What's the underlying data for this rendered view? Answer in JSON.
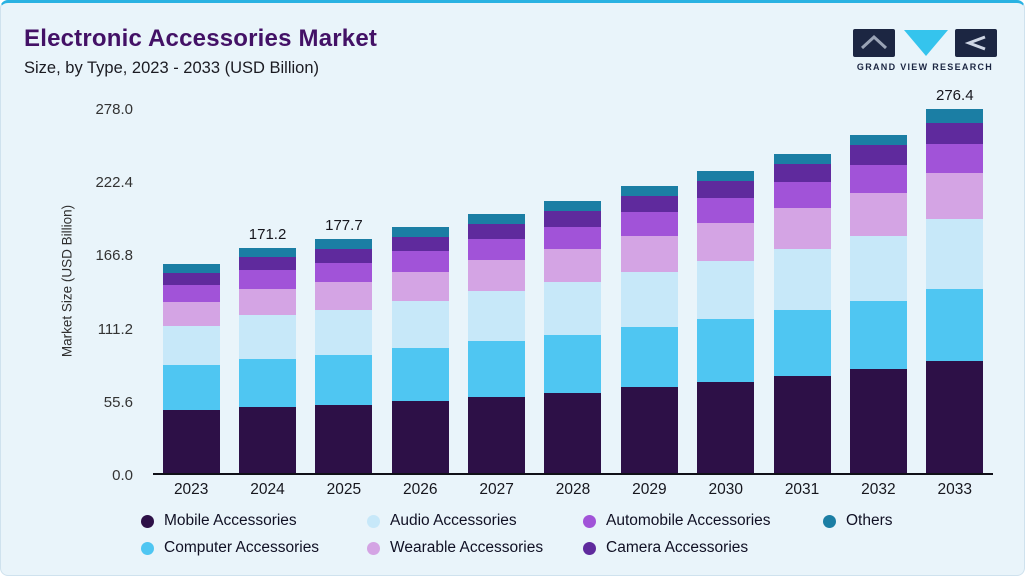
{
  "colors": {
    "accent": "#29b2e2",
    "title": "#431166",
    "logo_navy": "#1c2642",
    "logo_cyan": "#35c4ed"
  },
  "header": {
    "title": "Electronic Accessories Market",
    "subtitle": "Size, by Type, 2023 - 2033 (USD Billion)",
    "logo_text": "GRAND VIEW RESEARCH"
  },
  "chart_data": {
    "type": "bar",
    "stacked": true,
    "title": "Electronic Accessories Market Size, by Type, 2023 - 2033 (USD Billion)",
    "xlabel": "",
    "ylabel": "Market Size (USD Billion)",
    "ylim": [
      0,
      278.0
    ],
    "ytick_labels": [
      "0.0",
      "55.6",
      "111.2",
      "166.8",
      "222.4",
      "278.0"
    ],
    "grid": false,
    "legend_position": "bottom",
    "categories": [
      "2023",
      "2024",
      "2025",
      "2026",
      "2027",
      "2028",
      "2029",
      "2030",
      "2031",
      "2032",
      "2033"
    ],
    "series": [
      {
        "name": "Mobile Accessories",
        "color": "#2d1047",
        "values": [
          48,
          50,
          52,
          55,
          58,
          61,
          65,
          69,
          74,
          79,
          85
        ]
      },
      {
        "name": "Computer Accessories",
        "color": "#4fc6f2",
        "values": [
          34,
          37,
          38,
          40,
          42,
          44,
          46,
          48,
          50,
          52,
          55
        ]
      },
      {
        "name": "Audio Accessories",
        "color": "#c7e8f9",
        "values": [
          30,
          33,
          34,
          36,
          38,
          40,
          42,
          44,
          46,
          49,
          53
        ]
      },
      {
        "name": "Wearable Accessories",
        "color": "#d4a4e4",
        "values": [
          18,
          20,
          21,
          22,
          24,
          25,
          27,
          29,
          31,
          33,
          35
        ]
      },
      {
        "name": "Automobile Accessories",
        "color": "#a153d8",
        "values": [
          13,
          14,
          14.5,
          15.3,
          16,
          17,
          18,
          19,
          20,
          21,
          22
        ]
      },
      {
        "name": "Camera Accessories",
        "color": "#5f2a9d",
        "values": [
          9,
          10,
          10.5,
          11,
          11.5,
          12,
          12.5,
          13,
          14,
          15,
          16
        ]
      },
      {
        "name": "Others",
        "color": "#1b7ea4",
        "values": [
          7,
          7.2,
          7.7,
          7.6,
          7.1,
          7.9,
          7.4,
          7.8,
          7.6,
          7.6,
          10.4
        ]
      }
    ],
    "bar_total_labels": [
      {
        "category": "2024",
        "label": "171.2"
      },
      {
        "category": "2025",
        "label": "177.7"
      },
      {
        "category": "2033",
        "label": "276.4"
      }
    ],
    "legend_rows": [
      [
        "Mobile Accessories",
        "Audio Accessories",
        "Automobile Accessories",
        "Others"
      ],
      [
        "Computer Accessories",
        "Wearable Accessories",
        "Camera Accessories"
      ]
    ]
  }
}
